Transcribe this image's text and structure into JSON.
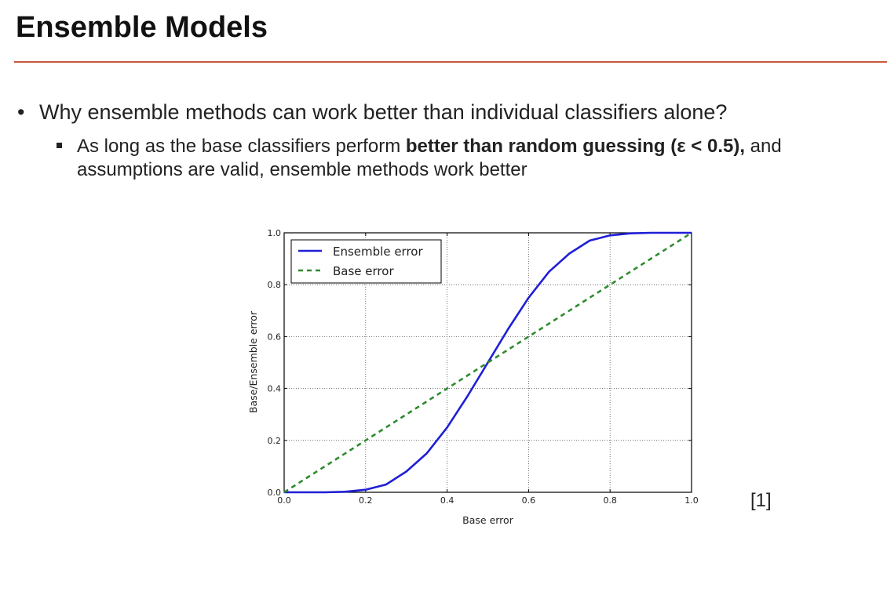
{
  "slide": {
    "title": "Ensemble Models",
    "bullet1": "Why ensemble methods can work better than individual classifiers alone?",
    "bullet2_part1": "As long as the base classifiers perform ",
    "bullet2_bold": "better than random guessing (ε < 0.5),",
    "bullet2_part2": " and assumptions are valid, ensemble methods work better",
    "reference": "[1]"
  },
  "colors": {
    "accent_rule": "#c9583a",
    "ensemble": "#1f1fd6",
    "base": "#2e8b2e"
  },
  "chart_data": {
    "type": "line",
    "xlabel": "Base error",
    "ylabel": "Base/Ensemble error",
    "xlim": [
      0.0,
      1.0
    ],
    "ylim": [
      0.0,
      1.0
    ],
    "xticks": [
      "0.0",
      "0.2",
      "0.4",
      "0.6",
      "0.8",
      "1.0"
    ],
    "yticks": [
      "0.0",
      "0.2",
      "0.4",
      "0.6",
      "0.8",
      "1.0"
    ],
    "grid": true,
    "legend": "top-left",
    "series": [
      {
        "name": "Ensemble error",
        "style": "solid",
        "color": "#1f1fd6",
        "x": [
          0.0,
          0.05,
          0.1,
          0.15,
          0.2,
          0.25,
          0.3,
          0.35,
          0.4,
          0.45,
          0.5,
          0.55,
          0.6,
          0.65,
          0.7,
          0.75,
          0.8,
          0.85,
          0.9,
          0.95,
          1.0
        ],
        "y": [
          0.0,
          0.0,
          0.0,
          0.002,
          0.01,
          0.03,
          0.08,
          0.15,
          0.25,
          0.37,
          0.5,
          0.63,
          0.75,
          0.85,
          0.92,
          0.97,
          0.99,
          0.998,
          1.0,
          1.0,
          1.0
        ]
      },
      {
        "name": "Base error",
        "style": "dashed",
        "color": "#2e8b2e",
        "x": [
          0.0,
          1.0
        ],
        "y": [
          0.0,
          1.0
        ]
      }
    ]
  }
}
